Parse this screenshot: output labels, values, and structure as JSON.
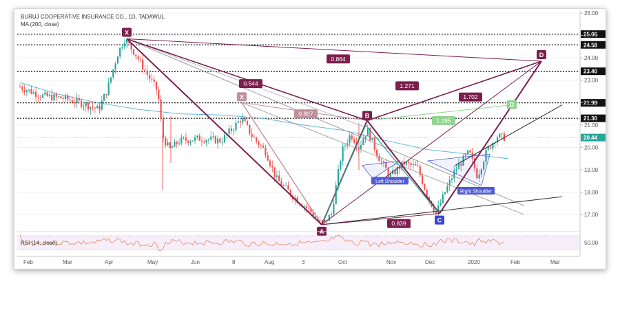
{
  "header": {
    "title": "BURUJ COOPERATIVE INSURANCE CO., 1D, TADAWUL",
    "ma_label": "MA (200, close)",
    "rsi_label": "RSI (14, close)"
  },
  "chart_data": {
    "type": "candlestick",
    "instrument": "BURUJ COOPERATIVE INSURANCE CO.",
    "interval": "1D",
    "exchange": "TADAWUL",
    "ylim": [
      16.3,
      26.0
    ],
    "y_ticks": [
      "26.00",
      "25.00",
      "24.00",
      "23.00",
      "22.00",
      "21.00",
      "20.00",
      "19.00",
      "18.00",
      "17.00"
    ],
    "x_ticks": [
      "Feb",
      "Mar",
      "Apr",
      "May",
      "Jun",
      "8",
      "Aug",
      "3",
      "Oct",
      "Nov",
      "Dec",
      "2020",
      "Feb",
      "Mar"
    ],
    "price_levels": [
      {
        "value": 25.06,
        "label": "25.06",
        "style": "dotted"
      },
      {
        "value": 24.58,
        "label": "24.58",
        "style": "dotted"
      },
      {
        "value": 23.4,
        "label": "23.40",
        "style": "dotted"
      },
      {
        "value": 21.99,
        "label": "21.99",
        "style": "dotted"
      },
      {
        "value": 21.3,
        "label": "21.30",
        "style": "dotted"
      },
      {
        "value": 20.44,
        "label": "20.44",
        "style": "last-price"
      }
    ],
    "pattern_points": [
      {
        "label": "X",
        "value": 24.85
      },
      {
        "label": "A",
        "value": 16.55
      },
      {
        "label": "B",
        "value": 21.2
      },
      {
        "label": "C",
        "value": 17.05
      },
      {
        "label": "D",
        "value": 23.85
      }
    ],
    "secondary_points": [
      {
        "label": "X",
        "value": 22.0
      },
      {
        "label": "D",
        "value": 21.9
      }
    ],
    "ratios": [
      "0.864",
      "0.544",
      "1.271",
      "1.702",
      "0.807",
      "1.195",
      "0.839"
    ],
    "annotations": [
      "Left Shoulder",
      "Right Shoulder"
    ],
    "rsi": {
      "label": "RSI (14, close)",
      "tick": "50.00"
    },
    "colors": {
      "pattern": "#7a1f4e",
      "secondary": "#c08f9c",
      "ma": "#5fb7d8",
      "bull": "#26a69a",
      "bear": "#ef5350",
      "green_ratio": "#8fd48f",
      "point_c": "#3b45d6",
      "shoulder": "#4f5bd5"
    }
  }
}
